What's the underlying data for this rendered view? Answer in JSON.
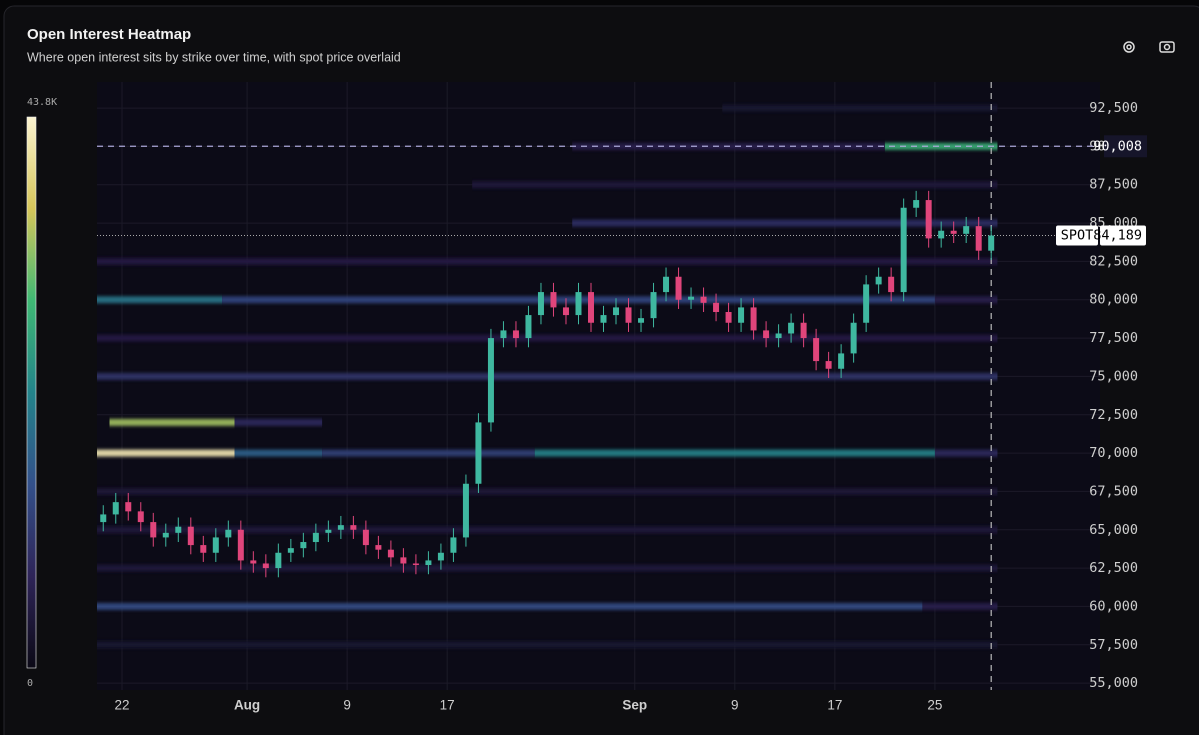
{
  "header": {
    "title": "Open Interest Heatmap",
    "subtitle": "Where open interest sits by strike over time, with spot price overlaid"
  },
  "chart_data": {
    "type": "candlestick",
    "colorbar": {
      "max": 43800,
      "max_label": "43.8K",
      "min": 0,
      "colors": [
        "#0b0916",
        "#2e2458",
        "#33508a",
        "#23838a",
        "#3fb874",
        "#d6c65a",
        "#fbf3d0"
      ]
    },
    "xlim": [
      0,
      80.2
    ],
    "xticks": [
      {
        "value": 2,
        "label": "22"
      },
      {
        "value": 12,
        "label": "Aug"
      },
      {
        "value": 20,
        "label": "9"
      },
      {
        "value": 28,
        "label": "17"
      },
      {
        "value": 43,
        "label": "Sep"
      },
      {
        "value": 51,
        "label": "9"
      },
      {
        "value": 59,
        "label": "17"
      },
      {
        "value": 67,
        "label": "25"
      }
    ],
    "ylim": [
      54550,
      94200
    ],
    "yticks": [
      {
        "value": 55000,
        "label": "55,000"
      },
      {
        "value": 57500,
        "label": "57,500"
      },
      {
        "value": 60000,
        "label": "60,000"
      },
      {
        "value": 62500,
        "label": "62,500"
      },
      {
        "value": 65000,
        "label": "65,000"
      },
      {
        "value": 67500,
        "label": "67,500"
      },
      {
        "value": 70000,
        "label": "70,000"
      },
      {
        "value": 72500,
        "label": "72,500"
      },
      {
        "value": 75000,
        "label": "75,000"
      },
      {
        "value": 77500,
        "label": "77,500"
      },
      {
        "value": 80000,
        "label": "80,000"
      },
      {
        "value": 82500,
        "label": "82,500"
      },
      {
        "value": 85000,
        "label": "85,000"
      },
      {
        "value": 87500,
        "label": "87,500"
      },
      {
        "value": 90000,
        "label": "90,000"
      },
      {
        "value": 92500,
        "label": "92,500"
      }
    ],
    "grid": true,
    "up_color": "#3fb8a0",
    "down_color": "#e0457b",
    "x": [
      0,
      1,
      2,
      3,
      4,
      5,
      6,
      7,
      8,
      9,
      10,
      11,
      12,
      13,
      14,
      15,
      16,
      17,
      18,
      19,
      20,
      21,
      22,
      23,
      24,
      25,
      26,
      27,
      28,
      29,
      30,
      31,
      32,
      33,
      34,
      35,
      36,
      37,
      38,
      39,
      40,
      41,
      42,
      43,
      44,
      45,
      46,
      47,
      48,
      49,
      50,
      51,
      52,
      53,
      54,
      55,
      56,
      57,
      58,
      59,
      60,
      61,
      62,
      63,
      64,
      65,
      66,
      67,
      68,
      69,
      70,
      71
    ],
    "open": [
      65500,
      66000,
      66800,
      66200,
      65500,
      64500,
      64800,
      65200,
      64000,
      63500,
      64500,
      65000,
      63000,
      62800,
      62500,
      63500,
      63800,
      64200,
      64800,
      65000,
      65300,
      65000,
      64000,
      63700,
      63200,
      62800,
      62700,
      63000,
      63500,
      64500,
      68000,
      72000,
      77500,
      78000,
      77500,
      79000,
      80500,
      79500,
      79000,
      80500,
      78500,
      79000,
      79500,
      78500,
      78800,
      80500,
      81500,
      80000,
      80200,
      79800,
      79200,
      78500,
      79500,
      78000,
      77500,
      77800,
      78500,
      77500,
      76000,
      75500,
      76500,
      78500,
      81000,
      81500,
      80500,
      86000,
      86500,
      84000,
      84500,
      84300,
      84800,
      83200
    ],
    "high": [
      66600,
      67400,
      67400,
      66800,
      66100,
      65400,
      65800,
      65800,
      64600,
      65100,
      65600,
      65600,
      63600,
      63400,
      64100,
      64400,
      64800,
      65400,
      65600,
      65900,
      65900,
      65600,
      64600,
      64300,
      63800,
      63400,
      63600,
      64100,
      65100,
      68600,
      72600,
      78100,
      78600,
      78600,
      79600,
      81100,
      81100,
      80100,
      81100,
      81100,
      79600,
      80100,
      80100,
      79400,
      81100,
      82100,
      82100,
      80800,
      80800,
      80400,
      79800,
      80100,
      80100,
      78600,
      78400,
      79100,
      79100,
      78100,
      76600,
      77100,
      79100,
      81600,
      82100,
      82100,
      86600,
      87100,
      87100,
      85100,
      85100,
      85400,
      85400,
      84789
    ],
    "low": [
      64900,
      65400,
      65600,
      64900,
      63900,
      63900,
      64200,
      63400,
      62900,
      62900,
      63900,
      62400,
      62200,
      61900,
      61900,
      62900,
      63200,
      63600,
      64200,
      64400,
      64400,
      63400,
      63100,
      62600,
      62200,
      62100,
      62100,
      62400,
      62900,
      63900,
      67400,
      71400,
      76900,
      76900,
      76900,
      78400,
      78900,
      78400,
      78400,
      77900,
      77900,
      78400,
      77900,
      77900,
      78200,
      79900,
      79400,
      79400,
      79200,
      78600,
      77900,
      77900,
      77400,
      76900,
      76900,
      77200,
      76900,
      75400,
      74900,
      74900,
      75900,
      77900,
      80400,
      79900,
      79900,
      85400,
      83400,
      83400,
      83700,
      83700,
      82600,
      82600
    ],
    "close": [
      66000,
      66800,
      66200,
      65500,
      64500,
      64800,
      65200,
      64000,
      63500,
      64500,
      65000,
      63000,
      62800,
      62500,
      63500,
      63800,
      64200,
      64800,
      65000,
      65300,
      65000,
      64000,
      63700,
      63200,
      62800,
      62700,
      63000,
      63500,
      64500,
      68000,
      72000,
      77500,
      78000,
      77500,
      79000,
      80500,
      79500,
      79000,
      80500,
      78500,
      79000,
      79500,
      78500,
      78800,
      80500,
      81500,
      80000,
      80200,
      79800,
      79200,
      78500,
      79500,
      78000,
      77500,
      77800,
      78500,
      77500,
      76000,
      75500,
      76500,
      78500,
      81000,
      81500,
      80500,
      86000,
      86500,
      84000,
      84500,
      84300,
      84800,
      83200,
      84189
    ],
    "bands": [
      {
        "strike": 70000,
        "start": 0,
        "end": 11,
        "value": 42000
      },
      {
        "strike": 70000,
        "start": 11,
        "end": 18,
        "value": 17000
      },
      {
        "strike": 70000,
        "start": 18,
        "end": 35,
        "value": 12000
      },
      {
        "strike": 70000,
        "start": 35,
        "end": 67,
        "value": 22000
      },
      {
        "strike": 70000,
        "start": 67,
        "end": 72,
        "value": 8000
      },
      {
        "strike": 72000,
        "start": 1,
        "end": 11,
        "value": 34000
      },
      {
        "strike": 72000,
        "start": 11,
        "end": 18,
        "value": 8000
      },
      {
        "strike": 60000,
        "start": 0,
        "end": 66,
        "value": 14000
      },
      {
        "strike": 60000,
        "start": 66,
        "end": 72,
        "value": 6000
      },
      {
        "strike": 75000,
        "start": 0,
        "end": 72,
        "value": 10000
      },
      {
        "strike": 80000,
        "start": 0,
        "end": 10,
        "value": 20000
      },
      {
        "strike": 80000,
        "start": 10,
        "end": 67,
        "value": 13000
      },
      {
        "strike": 80000,
        "start": 67,
        "end": 72,
        "value": 6000
      },
      {
        "strike": 90000,
        "start": 38,
        "end": 63,
        "value": 6000
      },
      {
        "strike": 90000,
        "start": 63,
        "end": 72,
        "value": 28000
      },
      {
        "strike": 85000,
        "start": 38,
        "end": 72,
        "value": 9000
      },
      {
        "strike": 82500,
        "start": 0,
        "end": 72,
        "value": 5000
      },
      {
        "strike": 77500,
        "start": 0,
        "end": 72,
        "value": 5000
      },
      {
        "strike": 65000,
        "start": 0,
        "end": 72,
        "value": 4000
      },
      {
        "strike": 62500,
        "start": 0,
        "end": 72,
        "value": 4000
      },
      {
        "strike": 67500,
        "start": 0,
        "end": 72,
        "value": 3500
      },
      {
        "strike": 57500,
        "start": 0,
        "end": 72,
        "value": 3000
      },
      {
        "strike": 87500,
        "start": 30,
        "end": 72,
        "value": 4000
      },
      {
        "strike": 92500,
        "start": 50,
        "end": 72,
        "value": 3000
      }
    ],
    "now_x": 71.5,
    "level": {
      "value": 90008,
      "value_label": "90,008"
    },
    "spot": {
      "label": "SPOT",
      "value": 84189,
      "value_label": "84,189"
    }
  }
}
